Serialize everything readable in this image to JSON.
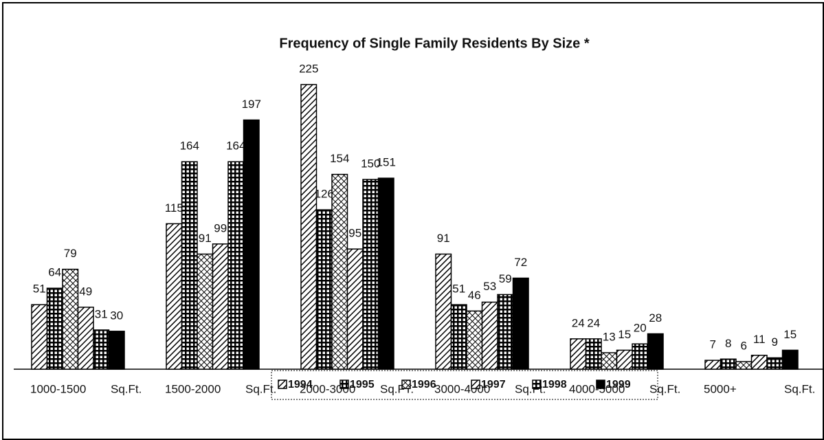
{
  "chart_data": {
    "type": "bar",
    "title": "Frequency of Single Family Residents By Size *",
    "categories": [
      "1000-1500",
      "1500-2000",
      "2000-3000",
      "3000-4000",
      "4000-5000",
      "5000+"
    ],
    "category_units": [
      "Sq.Ft.",
      "Sq.Ft.",
      "Sq.FT.",
      "Sq.Ft.",
      "Sq.Ft.",
      "Sq.Ft."
    ],
    "series": [
      {
        "name": "1994",
        "color": "#000000",
        "pattern": "diagonal",
        "values": [
          51,
          115,
          225,
          91,
          24,
          7
        ]
      },
      {
        "name": "1995",
        "color": "#000000",
        "pattern": "grid",
        "values": [
          64,
          164,
          126,
          51,
          24,
          8
        ]
      },
      {
        "name": "1996",
        "color": "#000000",
        "pattern": "cross",
        "values": [
          79,
          91,
          154,
          46,
          13,
          6
        ]
      },
      {
        "name": "1997",
        "color": "#000000",
        "pattern": "diagonal",
        "values": [
          49,
          99,
          95,
          53,
          15,
          11
        ]
      },
      {
        "name": "1998",
        "color": "#000000",
        "pattern": "grid",
        "values": [
          31,
          164,
          150,
          59,
          20,
          9
        ]
      },
      {
        "name": "1999",
        "color": "#000000",
        "pattern": "solid",
        "values": [
          30,
          197,
          151,
          72,
          28,
          15
        ]
      }
    ],
    "legend": "bottom"
  }
}
